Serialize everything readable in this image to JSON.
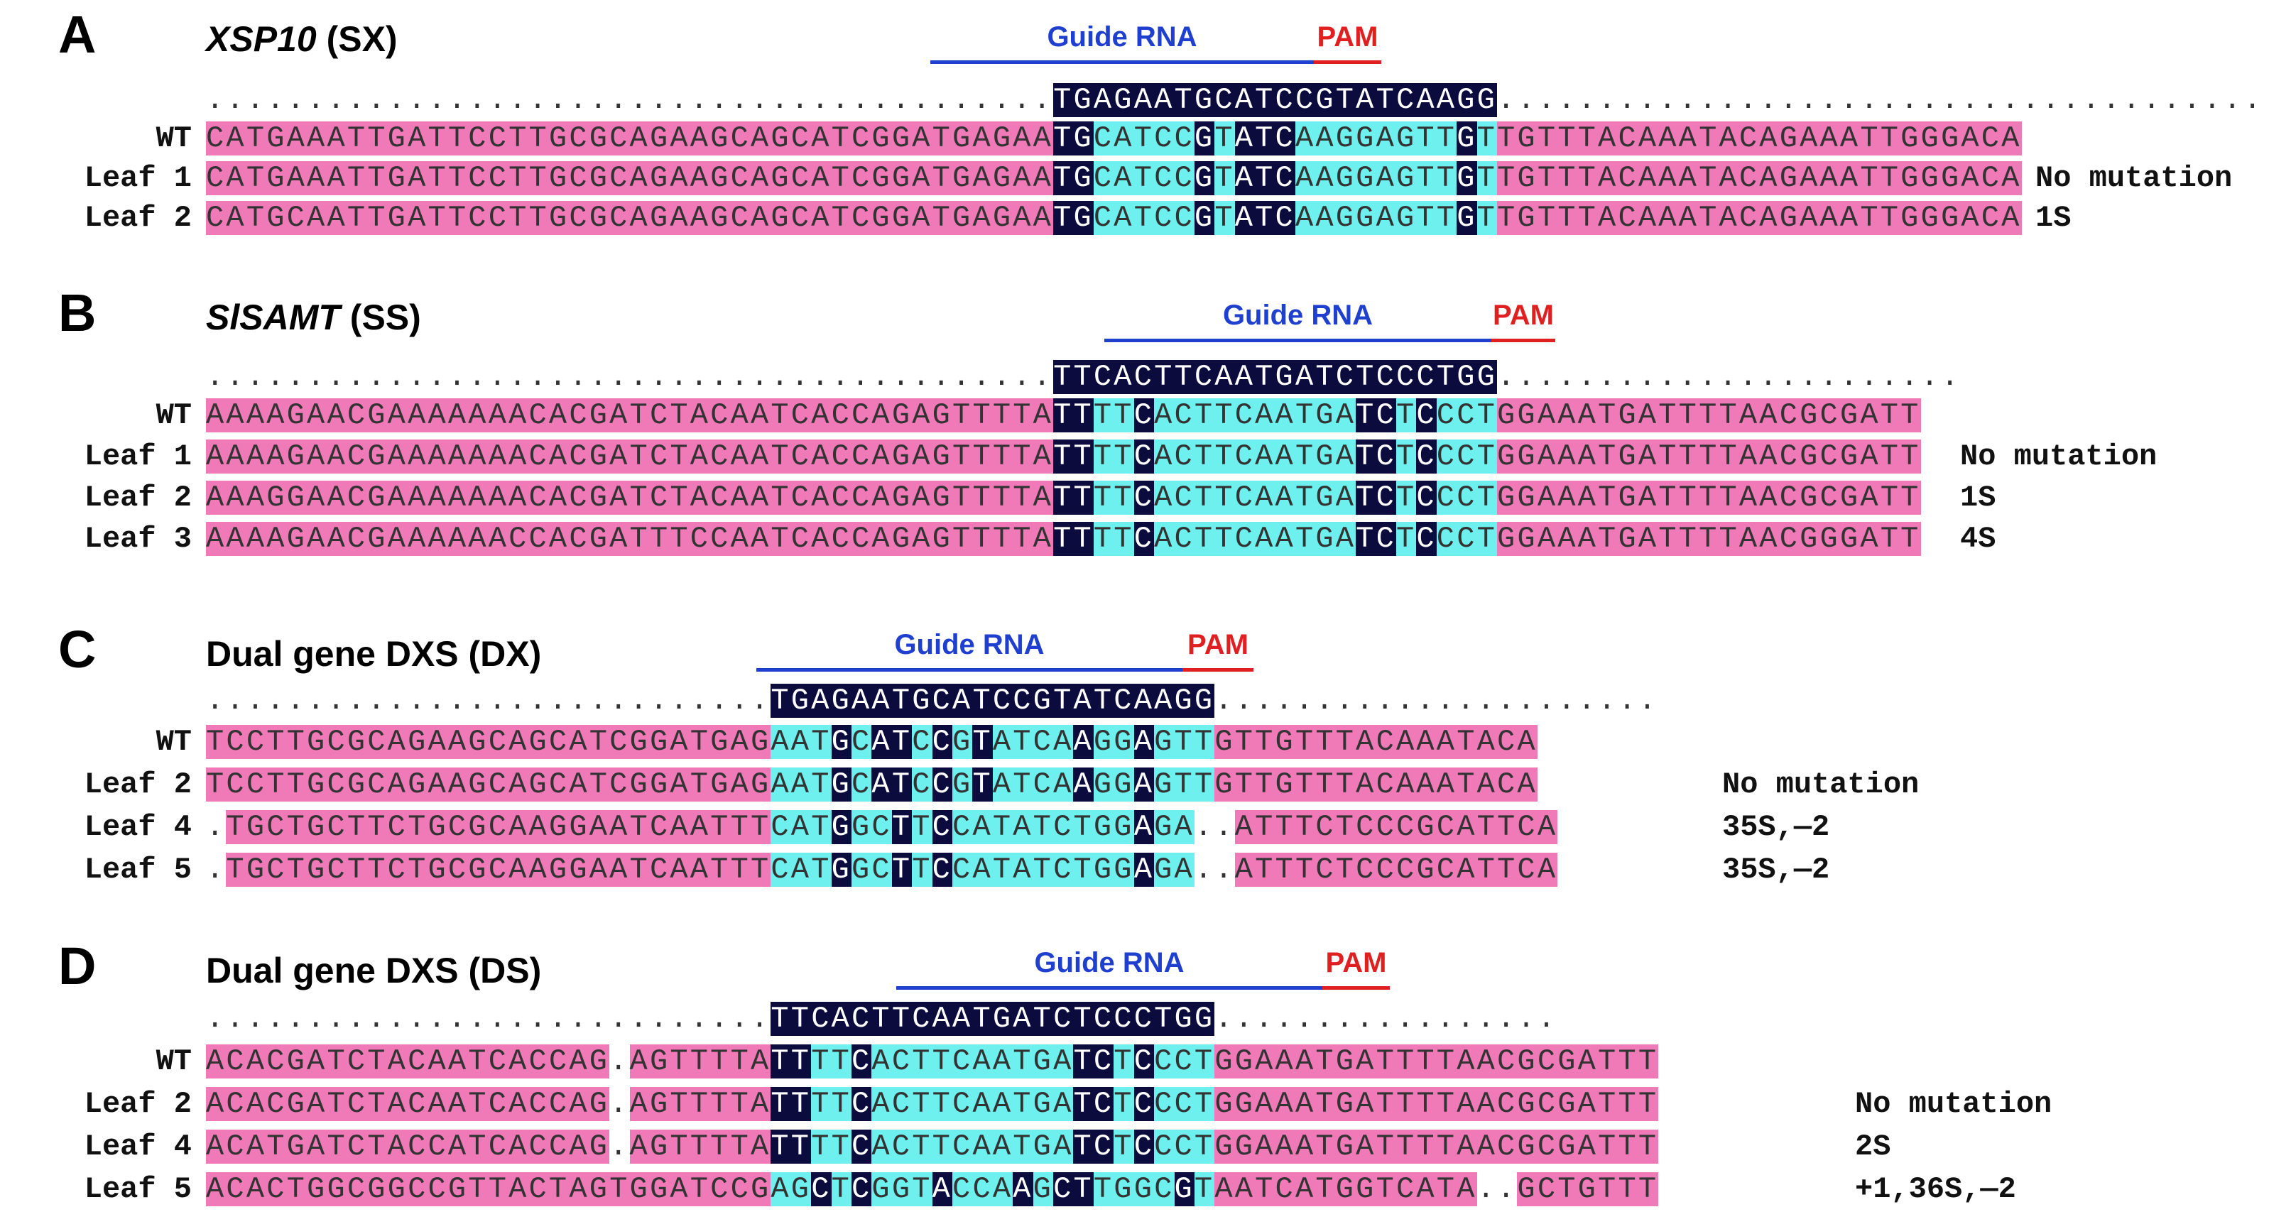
{
  "panels": [
    {
      "label": "A",
      "title_italic": "XSP10",
      "title_rest": " (SX)",
      "guide_label": "Guide RNA",
      "pam_label": "PAM",
      "consensus": "..........................................TGAGAATGCATCCGTATCAAGG..........................................",
      "rows": [
        {
          "label": "WT",
          "seq": "CATGAAATTGATTCCTTGCGCAGAAGCAGCATCGGATGAGAATGCATCCGTATCAAGGAGTTGTTGTTTACAAATACAGAAATTGGGACA",
          "note": ""
        },
        {
          "label": "Leaf 1",
          "seq": "CATGAAATTGATTCCTTGCGCAGAAGCAGCATCGGATGAGAATGCATCCGTATCAAGGAGTTGTTGTTTACAAATACAGAAATTGGGACA",
          "note": "No mutation"
        },
        {
          "label": "Leaf 2",
          "seq": "CATGCAATTGATTCCTTGCGCAGAAGCAGCATCGGATGAGAATGCATCCGTATCAAGGAGTTGTTGTTTACAAATACAGAAATTGGGACA",
          "note": "1S"
        }
      ]
    },
    {
      "label": "B",
      "title_italic": "SlSAMT",
      "title_rest": " (SS)",
      "guide_label": "Guide RNA",
      "pam_label": "PAM",
      "consensus": "..........................................TTCACTTCAATGATCTCCCTGG.......................",
      "rows": [
        {
          "label": "WT",
          "seq": "AAAAGAACGAAAAAAACACGATCTACAATCACCAGAGTTTTATTTTCACTTCAATGATCTCCCTGGAAATGATTTTAACGCGATT",
          "note": ""
        },
        {
          "label": "Leaf 1",
          "seq": "AAAAGAACGAAAAAAACACGATCTACAATCACCAGAGTTTTATTTTCACTTCAATGATCTCCCTGGAAATGATTTTAACGCGATT",
          "note": "No mutation"
        },
        {
          "label": "Leaf 2",
          "seq": "AAAGGAACGAAAAAAACACGATCTACAATCACCAGAGTTTTATTTTCACTTCAATGATCTCCCTGGAAATGATTTTAACGCGATT",
          "note": "1S"
        },
        {
          "label": "Leaf 3",
          "seq": "AAAAGAACGAAAAAACCACGATTTCCAATCACCAGAGTTTTATTTTCACTTCAATGATCTCCCTGGAAATGATTTTAACGGGATT",
          "note": "4S"
        }
      ]
    },
    {
      "label": "C",
      "title_italic": "",
      "title_rest": "Dual gene DXS (DX)",
      "guide_label": "Guide RNA",
      "pam_label": "PAM",
      "consensus": "............................TGAGAATGCATCCGTATCAAGG......................",
      "rows": [
        {
          "label": "WT",
          "seq": "TCCTTGCGCAGAAGCAGCATCGGATGAGAATGCATCCGTATCAAGGAGTTGTTGTTTACAAATACA",
          "note": ""
        },
        {
          "label": "Leaf 2",
          "seq": "TCCTTGCGCAGAAGCAGCATCGGATGAGAATGCATCCGTATCAAGGAGTTGTTGTTTACAAATACA",
          "note": "No mutation"
        },
        {
          "label": "Leaf 4",
          "seq": ".TGCTGCTTCTGCGCAAGGAATCAATTTCATGGCTTCCATATCTGGAGA..ATTTCTCCCGCATTCA",
          "note": "35S,—2"
        },
        {
          "label": "Leaf 5",
          "seq": ".TGCTGCTTCTGCGCAAGGAATCAATTTCATGGCTTCCATATCTGGAGA..ATTTCTCCCGCATTCA",
          "note": "35S,—2"
        }
      ]
    },
    {
      "label": "D",
      "title_italic": "",
      "title_rest": "Dual gene DXS (DS)",
      "guide_label": "Guide RNA",
      "pam_label": "PAM",
      "consensus": "............................TTCACTTCAATGATCTCCCTGG.................",
      "rows": [
        {
          "label": "WT",
          "seq": "ACACGATCTACAATCACCAG.AGTTTTATTTTCACTTCAATGATCTCCCTGGAAATGATTTTAACGCGATTT",
          "note": ""
        },
        {
          "label": "Leaf 2",
          "seq": "ACACGATCTACAATCACCAG.AGTTTTATTTTCACTTCAATGATCTCCCTGGAAATGATTTTAACGCGATTT",
          "note": "No mutation"
        },
        {
          "label": "Leaf 4",
          "seq": "ACATGATCTACCATCACCAG.AGTTTTATTTTCACTTCAATGATCTCCCTGGAAATGATTTTAACGCGATTT",
          "note": "2S"
        },
        {
          "label": "Leaf 5",
          "seq": "ACACTGGCGGCCGTTACTAGTGGATCCGAGCTCGGTACCAAGCTTGGCGTAATCATGGTCATA..GCTGTTT",
          "note": "+1,36S,—2"
        }
      ]
    }
  ]
}
